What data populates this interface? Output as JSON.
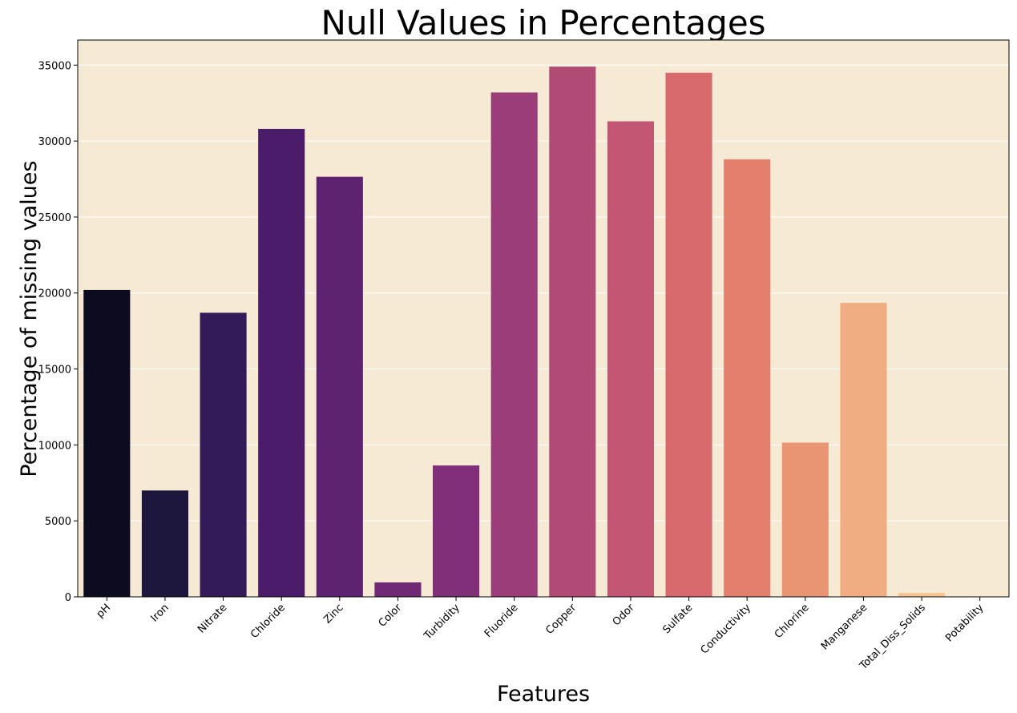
{
  "chart_data": {
    "type": "bar",
    "title": "Null Values in Percentages",
    "xlabel": "Features",
    "ylabel": "Percentage of missing values",
    "categories": [
      "pH",
      "Iron",
      "Nitrate",
      "Chloride",
      "Zinc",
      "Color",
      "Turbidity",
      "Fluoride",
      "Copper",
      "Odor",
      "Sulfate",
      "Conductivity",
      "Chlorine",
      "Manganese",
      "Total_Diss_Solids",
      "Potability"
    ],
    "values": [
      20200,
      7000,
      18700,
      30800,
      27650,
      950,
      8650,
      33200,
      34900,
      31300,
      34500,
      28800,
      10150,
      19350,
      250,
      0
    ],
    "colors": [
      "#0c0b1f",
      "#1e173d",
      "#331a59",
      "#4a1c6a",
      "#5d2370",
      "#702975",
      "#822f79",
      "#9a3d79",
      "#b24a76",
      "#c35673",
      "#d86a6e",
      "#e47f6e",
      "#e99574",
      "#f0ad82",
      "#f7c390",
      "#fddba4"
    ],
    "yticks": [
      0,
      5000,
      10000,
      15000,
      20000,
      25000,
      30000,
      35000
    ],
    "ylim": [
      0,
      36650
    ],
    "grid": "horizontal",
    "plot_background": "#f6ead5",
    "grid_color": "#ffffff"
  }
}
